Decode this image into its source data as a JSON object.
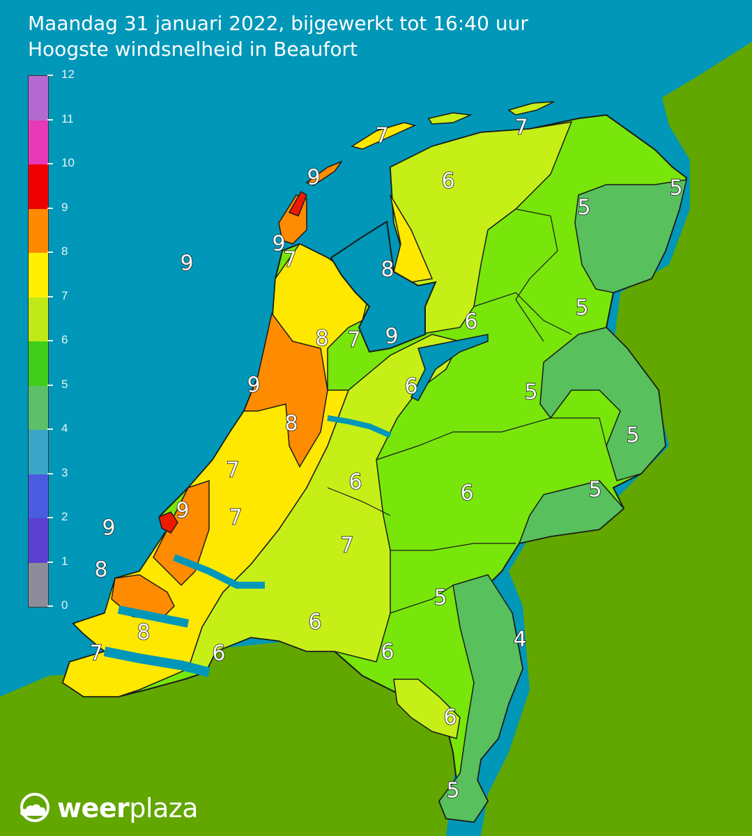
{
  "title": {
    "line1": "Maandag 31 januari 2022, bijgewerkt tot 16:40 uur",
    "line2": "Hoogste windsnelheid in Beaufort"
  },
  "legend": {
    "ticks": [
      "0",
      "1",
      "2",
      "3",
      "4",
      "5",
      "6",
      "7",
      "8",
      "9",
      "10",
      "11",
      "12"
    ],
    "bands": [
      {
        "from": 0,
        "to": 1,
        "color": "#8c8c9a"
      },
      {
        "from": 1,
        "to": 2,
        "color": "#5a3fd0"
      },
      {
        "from": 2,
        "to": 3,
        "color": "#4a5ce0"
      },
      {
        "from": 3,
        "to": 4,
        "color": "#3aa6c8"
      },
      {
        "from": 4,
        "to": 5,
        "color": "#5cbf6a"
      },
      {
        "from": 5,
        "to": 6,
        "color": "#3fce1a"
      },
      {
        "from": 6,
        "to": 7,
        "color": "#c0ea17"
      },
      {
        "from": 7,
        "to": 8,
        "color": "#fff000"
      },
      {
        "from": 8,
        "to": 9,
        "color": "#ff8a00"
      },
      {
        "from": 9,
        "to": 10,
        "color": "#ee0000"
      },
      {
        "from": 10,
        "to": 11,
        "color": "#e839b8"
      },
      {
        "from": 11,
        "to": 12,
        "color": "#b56ad2"
      }
    ]
  },
  "colors": {
    "sea": "#0097b8",
    "foreign_land": "#62a600",
    "bft4": "#58c05c",
    "bft5": "#78e60a",
    "bft6": "#c6ef18",
    "bft7": "#ffe800",
    "bft8": "#ff8c00",
    "bft9": "#ee1a00"
  },
  "labels": [
    "7",
    "7",
    "9",
    "6",
    "5",
    "5",
    "9",
    "7",
    "9",
    "8",
    "5",
    "6",
    "8",
    "7",
    "9",
    "9",
    "6",
    "5",
    "8",
    "5",
    "7",
    "6",
    "6",
    "5",
    "9",
    "7",
    "9",
    "7",
    "8",
    "5",
    "8",
    "6",
    "7",
    "6",
    "4",
    "6",
    "6",
    "5"
  ],
  "logo": {
    "brand_bold": "weer",
    "brand_light": "plaza"
  }
}
